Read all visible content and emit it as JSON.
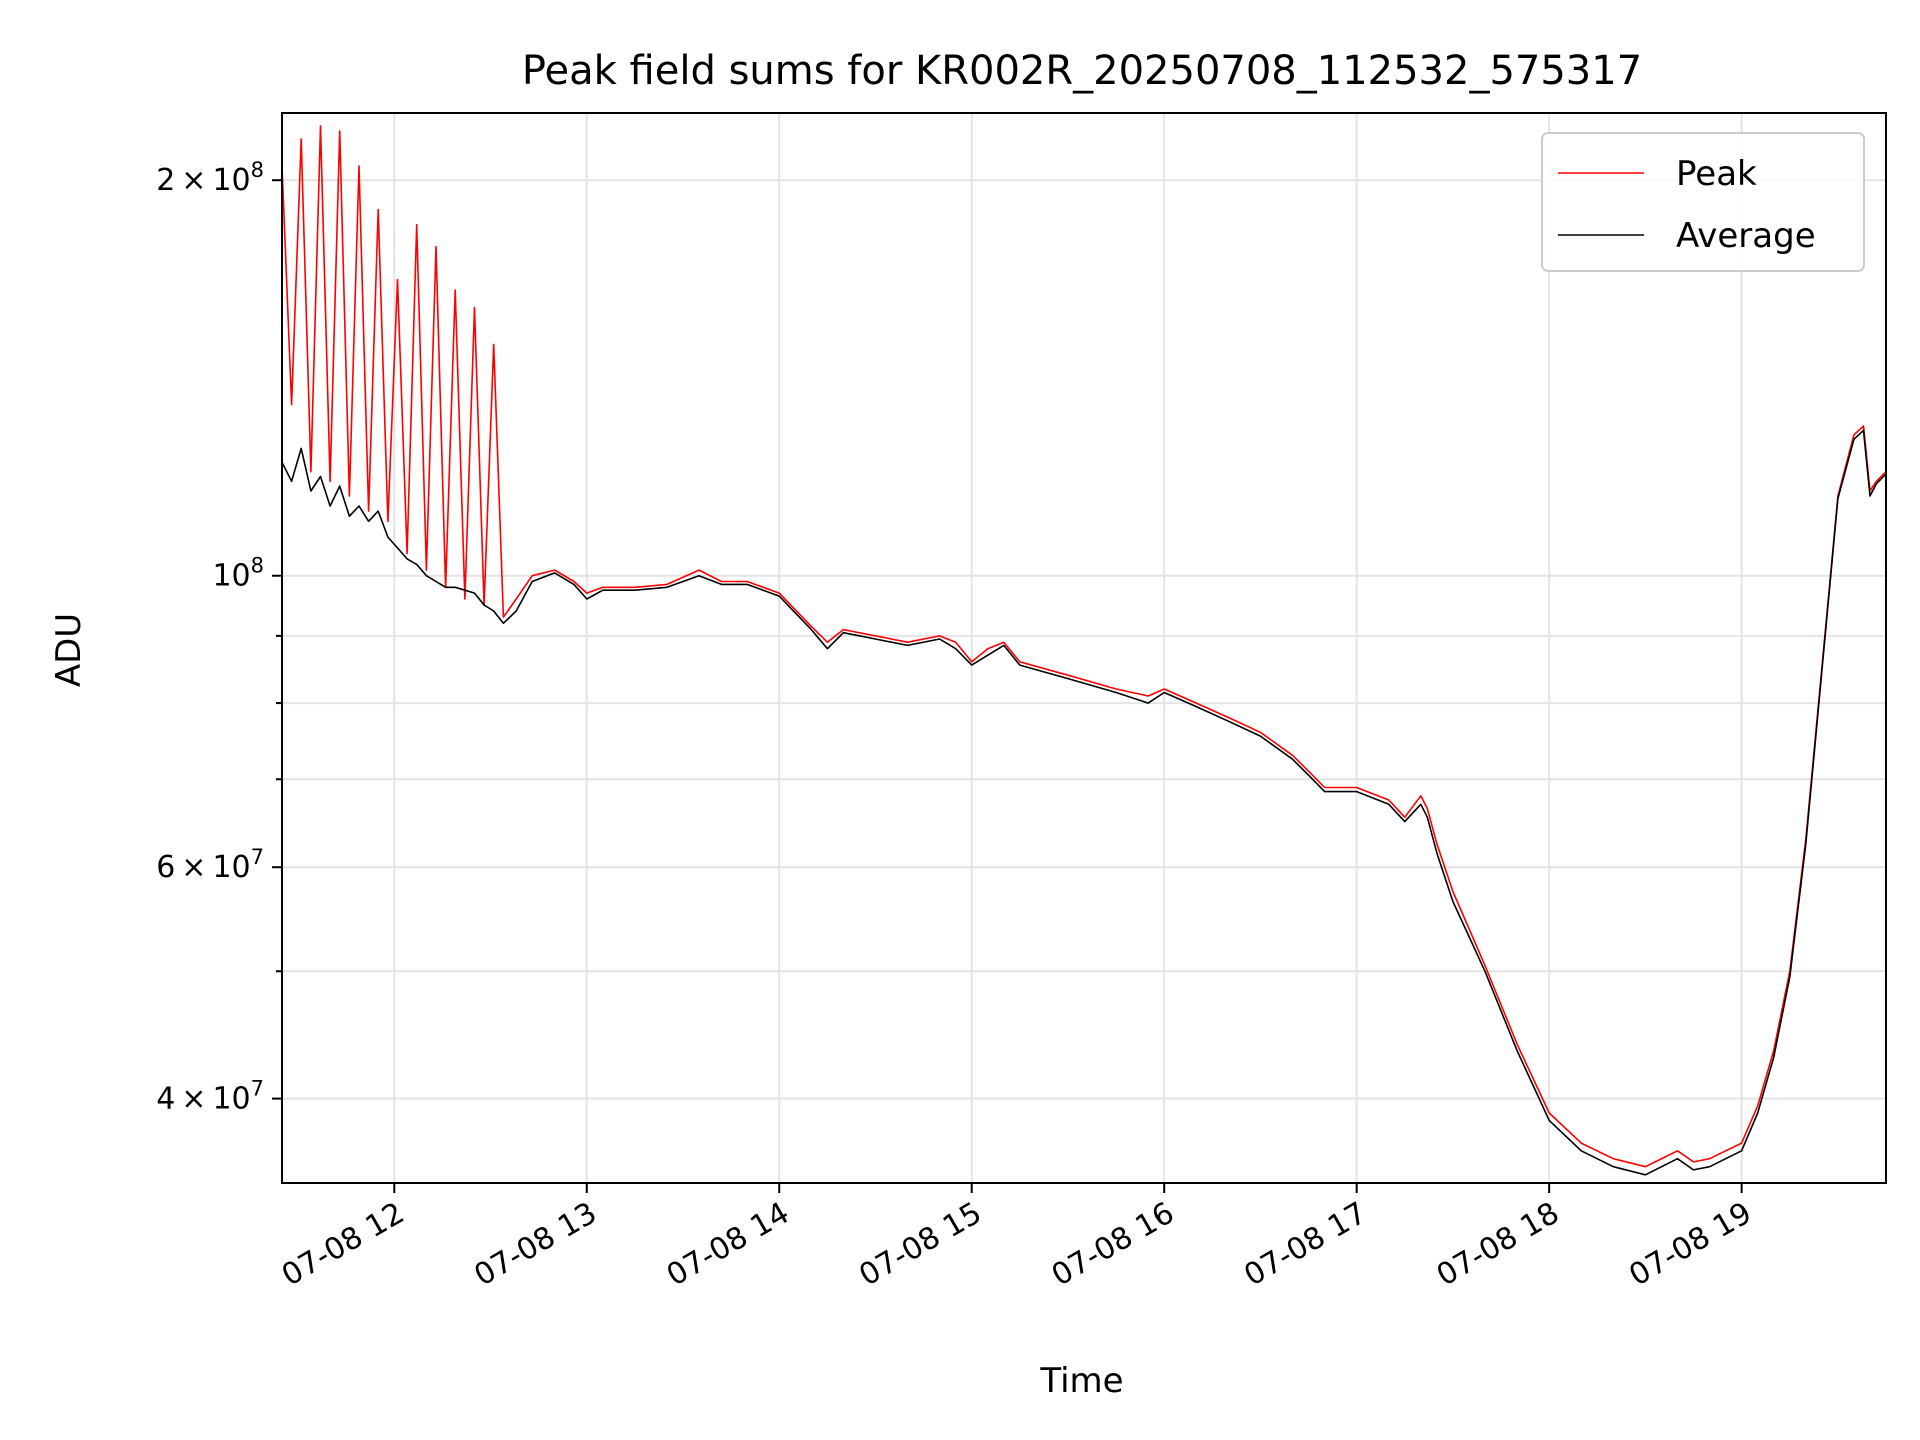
{
  "chart_data": {
    "type": "line",
    "title": "Peak field sums for KR002R_20250708_112532_575317",
    "xlabel": "Time",
    "ylabel": "ADU",
    "y_scale": "log",
    "grid": true,
    "legend_position": "top-right",
    "xlim": [
      "2025-07-08 11:25",
      "2025-07-08 19:45"
    ],
    "ylim": [
      34500000,
      225000000
    ],
    "x_ticks": [
      {
        "value": "2025-07-08 12:00",
        "label": "07-08 12"
      },
      {
        "value": "2025-07-08 13:00",
        "label": "07-08 13"
      },
      {
        "value": "2025-07-08 14:00",
        "label": "07-08 14"
      },
      {
        "value": "2025-07-08 15:00",
        "label": "07-08 15"
      },
      {
        "value": "2025-07-08 16:00",
        "label": "07-08 16"
      },
      {
        "value": "2025-07-08 17:00",
        "label": "07-08 17"
      },
      {
        "value": "2025-07-08 18:00",
        "label": "07-08 18"
      },
      {
        "value": "2025-07-08 19:00",
        "label": "07-08 19"
      }
    ],
    "y_major_ticks": [
      {
        "value": 40000000,
        "mantissa": "4",
        "base": "10",
        "exponent": "7"
      },
      {
        "value": 60000000,
        "mantissa": "6",
        "base": "10",
        "exponent": "7"
      },
      {
        "value": 100000000,
        "mantissa": "",
        "base": "10",
        "exponent": "8"
      },
      {
        "value": 200000000,
        "mantissa": "2",
        "base": "10",
        "exponent": "8"
      }
    ],
    "y_minor_ticks": [
      50000000,
      70000000,
      80000000,
      90000000
    ],
    "series": [
      {
        "name": "Peak",
        "color": "#ff0000",
        "x": [
          "2025-07-08 11:25",
          "2025-07-08 11:28",
          "2025-07-08 11:31",
          "2025-07-08 11:34",
          "2025-07-08 11:37",
          "2025-07-08 11:40",
          "2025-07-08 11:43",
          "2025-07-08 11:46",
          "2025-07-08 11:49",
          "2025-07-08 11:52",
          "2025-07-08 11:55",
          "2025-07-08 11:58",
          "2025-07-08 12:01",
          "2025-07-08 12:04",
          "2025-07-08 12:07",
          "2025-07-08 12:10",
          "2025-07-08 12:13",
          "2025-07-08 12:16",
          "2025-07-08 12:19",
          "2025-07-08 12:22",
          "2025-07-08 12:25",
          "2025-07-08 12:28",
          "2025-07-08 12:31",
          "2025-07-08 12:34",
          "2025-07-08 12:38",
          "2025-07-08 12:43",
          "2025-07-08 12:50",
          "2025-07-08 12:56",
          "2025-07-08 13:00",
          "2025-07-08 13:05",
          "2025-07-08 13:15",
          "2025-07-08 13:25",
          "2025-07-08 13:35",
          "2025-07-08 13:42",
          "2025-07-08 13:50",
          "2025-07-08 14:00",
          "2025-07-08 14:10",
          "2025-07-08 14:15",
          "2025-07-08 14:20",
          "2025-07-08 14:30",
          "2025-07-08 14:40",
          "2025-07-08 14:50",
          "2025-07-08 14:55",
          "2025-07-08 15:00",
          "2025-07-08 15:05",
          "2025-07-08 15:10",
          "2025-07-08 15:15",
          "2025-07-08 15:30",
          "2025-07-08 15:45",
          "2025-07-08 15:55",
          "2025-07-08 16:00",
          "2025-07-08 16:10",
          "2025-07-08 16:20",
          "2025-07-08 16:30",
          "2025-07-08 16:40",
          "2025-07-08 16:45",
          "2025-07-08 16:50",
          "2025-07-08 17:00",
          "2025-07-08 17:10",
          "2025-07-08 17:15",
          "2025-07-08 17:20",
          "2025-07-08 17:22",
          "2025-07-08 17:25",
          "2025-07-08 17:30",
          "2025-07-08 17:40",
          "2025-07-08 17:50",
          "2025-07-08 18:00",
          "2025-07-08 18:10",
          "2025-07-08 18:20",
          "2025-07-08 18:30",
          "2025-07-08 18:40",
          "2025-07-08 18:45",
          "2025-07-08 18:50",
          "2025-07-08 19:00",
          "2025-07-08 19:05",
          "2025-07-08 19:10",
          "2025-07-08 19:15",
          "2025-07-08 19:20",
          "2025-07-08 19:25",
          "2025-07-08 19:30",
          "2025-07-08 19:35",
          "2025-07-08 19:38",
          "2025-07-08 19:40",
          "2025-07-08 19:42",
          "2025-07-08 19:45"
        ],
        "y": [
          205000000,
          135000000,
          215000000,
          120000000,
          220000000,
          118000000,
          218000000,
          115000000,
          205000000,
          112000000,
          190000000,
          110000000,
          168000000,
          104000000,
          185000000,
          101000000,
          178000000,
          98000000,
          165000000,
          96000000,
          160000000,
          95000000,
          150000000,
          93000000,
          96000000,
          100000000,
          101000000,
          99000000,
          97000000,
          98000000,
          98000000,
          98500000,
          101000000,
          99000000,
          99000000,
          97000000,
          91500000,
          89000000,
          91000000,
          90000000,
          89000000,
          90000000,
          89000000,
          86000000,
          88000000,
          89000000,
          86000000,
          84000000,
          82000000,
          81000000,
          82000000,
          80000000,
          78000000,
          76000000,
          73000000,
          71000000,
          69000000,
          69000000,
          67500000,
          65500000,
          68000000,
          66500000,
          62500000,
          57500000,
          50500000,
          44000000,
          39000000,
          37000000,
          36000000,
          35500000,
          36500000,
          35800000,
          36000000,
          37000000,
          39500000,
          43500000,
          50000000,
          63000000,
          85000000,
          115000000,
          128000000,
          130000000,
          116000000,
          118000000,
          120000000
        ]
      },
      {
        "name": "Average",
        "color": "#000000",
        "x": [
          "2025-07-08 11:25",
          "2025-07-08 11:28",
          "2025-07-08 11:31",
          "2025-07-08 11:34",
          "2025-07-08 11:37",
          "2025-07-08 11:40",
          "2025-07-08 11:43",
          "2025-07-08 11:46",
          "2025-07-08 11:49",
          "2025-07-08 11:52",
          "2025-07-08 11:55",
          "2025-07-08 11:58",
          "2025-07-08 12:01",
          "2025-07-08 12:04",
          "2025-07-08 12:07",
          "2025-07-08 12:10",
          "2025-07-08 12:13",
          "2025-07-08 12:16",
          "2025-07-08 12:19",
          "2025-07-08 12:22",
          "2025-07-08 12:25",
          "2025-07-08 12:28",
          "2025-07-08 12:31",
          "2025-07-08 12:34",
          "2025-07-08 12:38",
          "2025-07-08 12:43",
          "2025-07-08 12:50",
          "2025-07-08 12:56",
          "2025-07-08 13:00",
          "2025-07-08 13:05",
          "2025-07-08 13:15",
          "2025-07-08 13:25",
          "2025-07-08 13:35",
          "2025-07-08 13:42",
          "2025-07-08 13:50",
          "2025-07-08 14:00",
          "2025-07-08 14:10",
          "2025-07-08 14:15",
          "2025-07-08 14:20",
          "2025-07-08 14:30",
          "2025-07-08 14:40",
          "2025-07-08 14:50",
          "2025-07-08 14:55",
          "2025-07-08 15:00",
          "2025-07-08 15:05",
          "2025-07-08 15:10",
          "2025-07-08 15:15",
          "2025-07-08 15:30",
          "2025-07-08 15:45",
          "2025-07-08 15:55",
          "2025-07-08 16:00",
          "2025-07-08 16:10",
          "2025-07-08 16:20",
          "2025-07-08 16:30",
          "2025-07-08 16:40",
          "2025-07-08 16:45",
          "2025-07-08 16:50",
          "2025-07-08 17:00",
          "2025-07-08 17:10",
          "2025-07-08 17:15",
          "2025-07-08 17:20",
          "2025-07-08 17:22",
          "2025-07-08 17:25",
          "2025-07-08 17:30",
          "2025-07-08 17:40",
          "2025-07-08 17:50",
          "2025-07-08 18:00",
          "2025-07-08 18:10",
          "2025-07-08 18:20",
          "2025-07-08 18:30",
          "2025-07-08 18:40",
          "2025-07-08 18:45",
          "2025-07-08 18:50",
          "2025-07-08 19:00",
          "2025-07-08 19:05",
          "2025-07-08 19:10",
          "2025-07-08 19:15",
          "2025-07-08 19:20",
          "2025-07-08 19:25",
          "2025-07-08 19:30",
          "2025-07-08 19:35",
          "2025-07-08 19:38",
          "2025-07-08 19:40",
          "2025-07-08 19:42",
          "2025-07-08 19:45"
        ],
        "y": [
          122000000,
          118000000,
          125000000,
          116000000,
          119000000,
          113000000,
          117000000,
          111000000,
          113000000,
          110000000,
          112000000,
          107000000,
          105000000,
          103000000,
          102000000,
          100000000,
          99000000,
          98000000,
          98000000,
          97500000,
          97000000,
          95000000,
          94000000,
          92000000,
          94000000,
          99000000,
          100500000,
          98500000,
          96000000,
          97500000,
          97500000,
          98000000,
          100000000,
          98500000,
          98500000,
          96500000,
          91000000,
          88000000,
          90500000,
          89500000,
          88500000,
          89500000,
          88000000,
          85500000,
          87000000,
          88500000,
          85500000,
          83500000,
          81500000,
          80000000,
          81500000,
          79500000,
          77500000,
          75500000,
          72500000,
          70500000,
          68500000,
          68500000,
          67000000,
          65000000,
          67000000,
          65500000,
          61500000,
          56500000,
          50000000,
          43500000,
          38500000,
          36500000,
          35500000,
          35000000,
          36000000,
          35300000,
          35500000,
          36500000,
          39000000,
          43000000,
          49500000,
          62500000,
          84500000,
          114500000,
          127000000,
          129000000,
          115000000,
          117500000,
          119500000
        ]
      }
    ]
  }
}
